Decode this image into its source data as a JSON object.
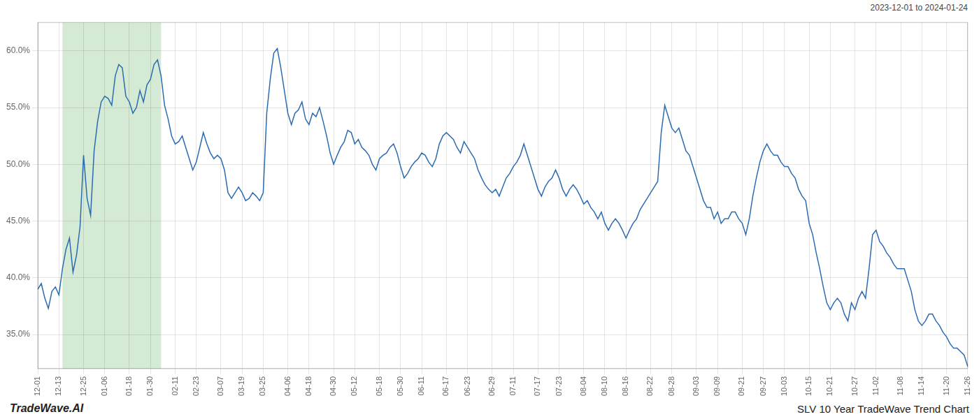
{
  "chart_data": {
    "type": "line",
    "title": "SLV 10 Year TradeWave Trend Chart",
    "subtitle": "2023-12-01 to 2024-01-24",
    "annotations": [
      "TradeWave.AI"
    ],
    "color": "#2b6cb0",
    "grid": true,
    "highlight": {
      "start": 7,
      "end": 35,
      "color": "#d4ead4"
    },
    "ylim": [
      32.0,
      62.5
    ],
    "yticks": [
      {
        "value": 35.0,
        "label": "35.0%"
      },
      {
        "value": 40.0,
        "label": "40.0%"
      },
      {
        "value": 45.0,
        "label": "45.0%"
      },
      {
        "value": 50.0,
        "label": "50.0%"
      },
      {
        "value": 55.0,
        "label": "55.0%"
      },
      {
        "value": 60.0,
        "label": "60.0%"
      }
    ],
    "categories": [
      "12-01",
      null,
      null,
      null,
      null,
      null,
      "12-13",
      null,
      null,
      null,
      null,
      null,
      null,
      "12-25",
      null,
      null,
      null,
      null,
      null,
      "01-06",
      null,
      null,
      null,
      null,
      null,
      null,
      "01-18",
      null,
      null,
      null,
      null,
      null,
      "01-30",
      null,
      null,
      null,
      null,
      null,
      null,
      "02-11",
      null,
      null,
      null,
      null,
      null,
      "02-23",
      null,
      null,
      null,
      null,
      null,
      null,
      "03-07",
      null,
      null,
      null,
      null,
      null,
      "03-19",
      null,
      null,
      null,
      null,
      null,
      "03-25",
      null,
      null,
      null,
      null,
      null,
      null,
      "04-06",
      null,
      null,
      null,
      null,
      null,
      "04-18",
      null,
      null,
      null,
      null,
      null,
      null,
      "04-30",
      null,
      null,
      null,
      null,
      null,
      "05-12",
      null,
      null,
      null,
      null,
      null,
      null,
      "05-18",
      null,
      null,
      null,
      null,
      null,
      "05-30",
      null,
      null,
      null,
      null,
      null,
      "06-11",
      null,
      null,
      null,
      null,
      null,
      null,
      "06-17",
      null,
      null,
      null,
      null,
      null,
      "06-23",
      null,
      null,
      null,
      null,
      null,
      null,
      "06-29",
      null,
      null,
      null,
      null,
      null,
      "07-11",
      null,
      null,
      null,
      null,
      null,
      null,
      "07-17",
      null,
      null,
      null,
      null,
      null,
      "07-23",
      null,
      null,
      null,
      null,
      null,
      null,
      "08-04",
      null,
      null,
      null,
      null,
      null,
      "08-10",
      null,
      null,
      null,
      null,
      null,
      "08-16",
      null,
      null,
      null,
      null,
      null,
      null,
      "08-22",
      null,
      null,
      null,
      null,
      null,
      "08-28",
      null,
      null,
      null,
      null,
      null,
      null,
      "09-03",
      null,
      null,
      null,
      null,
      null,
      "09-09",
      null,
      null,
      null,
      null,
      null,
      null,
      "09-21",
      null,
      null,
      null,
      null,
      null,
      "09-27",
      null,
      null,
      null,
      null,
      null,
      "10-03",
      null,
      null,
      null,
      null,
      null,
      null,
      "10-15",
      null,
      null,
      null,
      null,
      null,
      "10-21",
      null,
      null,
      null,
      null,
      null,
      null,
      "10-27",
      null,
      null,
      null,
      null,
      null,
      "11-02",
      null,
      null,
      null,
      null,
      null,
      null,
      "11-08",
      null,
      null,
      null,
      null,
      null,
      "11-14",
      null,
      null,
      null,
      null,
      null,
      null,
      "11-20",
      null,
      null,
      null,
      null,
      null,
      "11-26"
    ],
    "values": [
      39.0,
      39.5,
      38.2,
      37.3,
      38.8,
      39.2,
      38.5,
      40.8,
      42.5,
      43.5,
      40.5,
      42.0,
      44.5,
      50.8,
      47.0,
      45.5,
      51.2,
      53.8,
      55.5,
      56.0,
      55.8,
      55.2,
      57.8,
      58.8,
      58.5,
      56.0,
      55.5,
      54.5,
      55.0,
      56.5,
      55.5,
      57.0,
      57.5,
      58.8,
      59.2,
      57.8,
      55.2,
      54.0,
      52.5,
      51.8,
      52.0,
      52.5,
      51.5,
      50.5,
      49.5,
      50.2,
      51.5,
      52.8,
      51.8,
      51.0,
      50.5,
      50.8,
      50.5,
      49.5,
      47.5,
      47.0,
      47.5,
      48.0,
      47.5,
      46.8,
      47.0,
      47.5,
      47.2,
      46.8,
      47.5,
      54.5,
      57.5,
      59.8,
      60.2,
      58.5,
      56.5,
      54.5,
      53.5,
      54.5,
      54.8,
      55.5,
      54.0,
      53.5,
      54.5,
      54.2,
      55.0,
      53.8,
      52.5,
      51.0,
      50.0,
      50.8,
      51.5,
      52.0,
      53.0,
      52.8,
      51.8,
      52.2,
      51.5,
      51.2,
      50.8,
      50.0,
      49.5,
      50.5,
      50.8,
      51.0,
      51.5,
      51.8,
      51.0,
      49.8,
      48.8,
      49.2,
      49.8,
      50.2,
      50.5,
      51.0,
      50.8,
      50.2,
      49.8,
      50.5,
      51.8,
      52.5,
      52.8,
      52.5,
      52.2,
      51.5,
      51.0,
      52.0,
      51.5,
      51.0,
      50.5,
      49.5,
      48.8,
      48.2,
      47.8,
      47.5,
      47.8,
      47.2,
      48.0,
      48.8,
      49.2,
      49.8,
      50.2,
      50.8,
      51.8,
      50.8,
      49.8,
      48.8,
      47.8,
      47.2,
      48.0,
      48.5,
      48.8,
      49.5,
      48.8,
      47.8,
      47.2,
      47.8,
      48.2,
      47.8,
      47.2,
      46.5,
      46.8,
      46.2,
      45.8,
      45.2,
      45.8,
      44.8,
      44.2,
      44.8,
      45.2,
      44.8,
      44.2,
      43.5,
      44.2,
      44.8,
      45.2,
      46.0,
      46.5,
      47.0,
      47.5,
      48.0,
      48.5,
      52.8,
      55.2,
      54.2,
      53.2,
      52.8,
      53.2,
      52.2,
      51.2,
      50.8,
      49.8,
      48.8,
      47.8,
      46.8,
      46.2,
      46.2,
      45.2,
      45.8,
      44.8,
      45.2,
      45.2,
      45.8,
      45.8,
      45.2,
      44.8,
      43.8,
      45.2,
      47.2,
      48.8,
      50.2,
      51.2,
      51.8,
      51.2,
      50.8,
      50.8,
      50.2,
      49.8,
      49.8,
      49.2,
      48.8,
      47.8,
      47.2,
      46.8,
      44.8,
      43.8,
      42.2,
      40.8,
      39.2,
      37.8,
      37.2,
      37.8,
      38.2,
      37.8,
      36.8,
      36.2,
      37.8,
      37.2,
      38.2,
      38.8,
      38.2,
      40.8,
      43.8,
      44.2,
      43.2,
      42.8,
      42.2,
      41.8,
      41.2,
      40.8,
      40.8,
      40.8,
      39.8,
      38.8,
      37.2,
      36.2,
      35.8,
      36.2,
      36.8,
      36.8,
      36.2,
      35.8,
      35.2,
      34.8,
      34.2,
      33.8,
      33.8,
      33.5,
      33.2,
      32.2
    ]
  }
}
